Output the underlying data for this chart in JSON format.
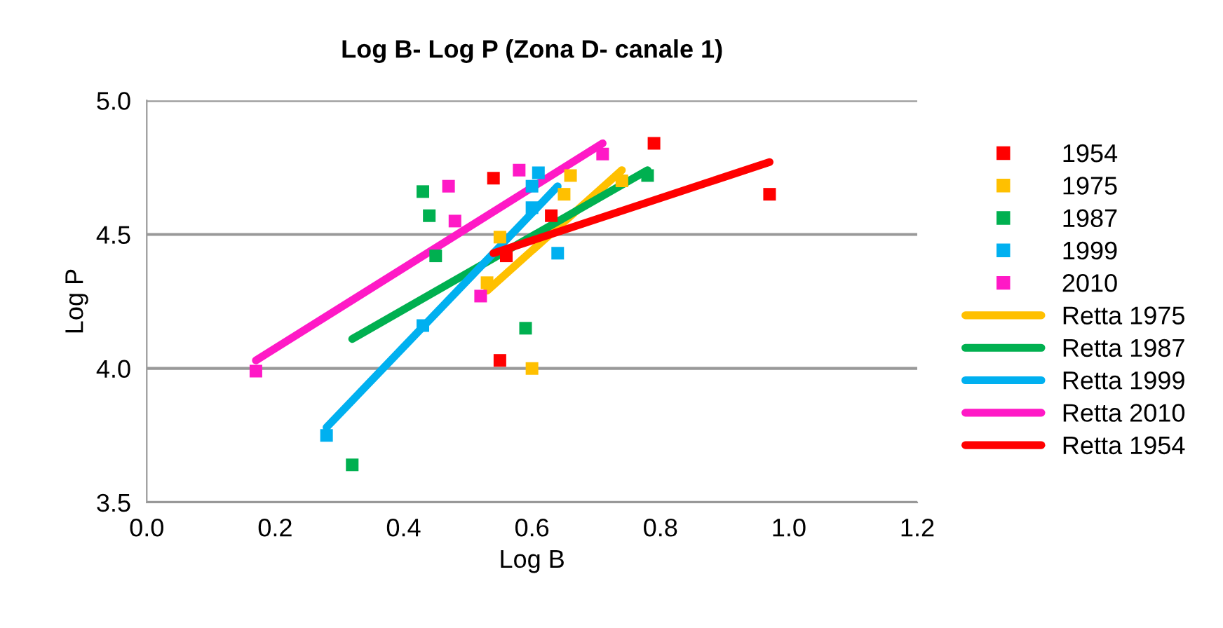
{
  "chart_data": {
    "type": "scatter",
    "title": "Log B- Log P (Zona D- canale 1)",
    "xlabel": "Log B",
    "ylabel": "Log P",
    "xlim": [
      0,
      1.2
    ],
    "ylim": [
      3.5,
      5.0
    ],
    "xticks": [
      {
        "value": 0,
        "label": "0.0"
      },
      {
        "value": 0.2,
        "label": "0.2"
      },
      {
        "value": 0.4,
        "label": "0.4"
      },
      {
        "value": 0.6,
        "label": "0.6"
      },
      {
        "value": 0.8,
        "label": "0.8"
      },
      {
        "value": 1.0,
        "label": "1.0"
      },
      {
        "value": 1.2,
        "label": "1.2"
      }
    ],
    "yticks": [
      {
        "value": 3.5,
        "label": "3.5"
      },
      {
        "value": 4.0,
        "label": "4.0"
      },
      {
        "value": 4.5,
        "label": "4.5"
      },
      {
        "value": 5.0,
        "label": "5.0"
      }
    ],
    "grid": "y",
    "legend": "right",
    "marker": "square",
    "series": [
      {
        "name": "1954",
        "color": "#ff0000",
        "x": [
          0.54,
          0.55,
          0.56,
          0.63,
          0.79,
          0.97
        ],
        "values": [
          4.71,
          4.03,
          4.42,
          4.57,
          4.84,
          4.65
        ]
      },
      {
        "name": "1975",
        "color": "#ffc000",
        "x": [
          0.53,
          0.55,
          0.6,
          0.65,
          0.66,
          0.74
        ],
        "values": [
          4.32,
          4.49,
          4.0,
          4.65,
          4.72,
          4.7
        ]
      },
      {
        "name": "1987",
        "color": "#00b050",
        "x": [
          0.43,
          0.44,
          0.45,
          0.59,
          0.32,
          0.78
        ],
        "values": [
          4.66,
          4.57,
          4.42,
          4.15,
          3.64,
          4.72
        ]
      },
      {
        "name": "1999",
        "color": "#00b0f0",
        "x": [
          0.28,
          0.43,
          0.61,
          0.6,
          0.6,
          0.64
        ],
        "values": [
          3.75,
          4.16,
          4.73,
          4.68,
          4.6,
          4.43
        ]
      },
      {
        "name": "2010",
        "color": "#ff19c6",
        "x": [
          0.17,
          0.47,
          0.48,
          0.52,
          0.58,
          0.71
        ],
        "values": [
          3.99,
          4.68,
          4.55,
          4.27,
          4.74,
          4.8
        ]
      },
      {
        "name": "Retta 1975",
        "type": "line",
        "marker": "none",
        "color": "#ffc000",
        "x": [
          0.53,
          0.74
        ],
        "values": [
          4.29,
          4.74
        ]
      },
      {
        "name": "Retta 1987",
        "type": "line",
        "marker": "none",
        "color": "#00b050",
        "x": [
          0.32,
          0.78
        ],
        "values": [
          4.11,
          4.74
        ]
      },
      {
        "name": "Retta 1999",
        "type": "line",
        "marker": "none",
        "color": "#00b0f0",
        "x": [
          0.28,
          0.64
        ],
        "values": [
          3.78,
          4.68
        ]
      },
      {
        "name": "Retta 2010",
        "type": "line",
        "marker": "none",
        "color": "#ff19c6",
        "x": [
          0.17,
          0.71
        ],
        "values": [
          4.03,
          4.84
        ]
      },
      {
        "name": "Retta 1954",
        "type": "line",
        "marker": "none",
        "color": "#ff0000",
        "x": [
          0.54,
          0.97
        ],
        "values": [
          4.43,
          4.77
        ]
      }
    ]
  }
}
